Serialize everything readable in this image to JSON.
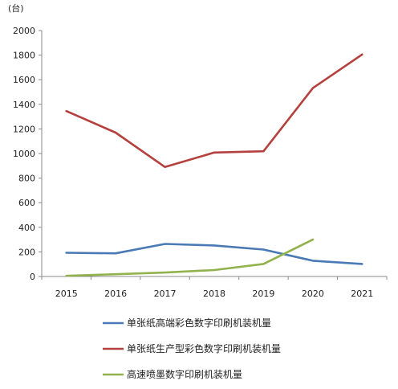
{
  "chart_data": {
    "type": "line",
    "unit_label": "(台)",
    "x": [
      "2015",
      "2016",
      "2017",
      "2018",
      "2019",
      "2020",
      "2021"
    ],
    "ylim": [
      0,
      2000
    ],
    "yticks": [
      0,
      200,
      400,
      600,
      800,
      1000,
      1200,
      1400,
      1600,
      1800,
      2000
    ],
    "grid": false,
    "legend_position": "bottom",
    "series": [
      {
        "name": "单张纸高端彩色数字印刷机装机量",
        "color": "#4a7ab5",
        "values": [
          193,
          188,
          265,
          252,
          219,
          128,
          102
        ]
      },
      {
        "name": "单张纸生产型彩色数字印刷机装机量",
        "color": "#b5413e",
        "values": [
          1345,
          1170,
          890,
          1008,
          1018,
          1532,
          1805
        ]
      },
      {
        "name": "高速喷墨数字印刷机装机量",
        "color": "#92b24e",
        "values": [
          5,
          18,
          32,
          52,
          102,
          300,
          null
        ]
      }
    ]
  }
}
